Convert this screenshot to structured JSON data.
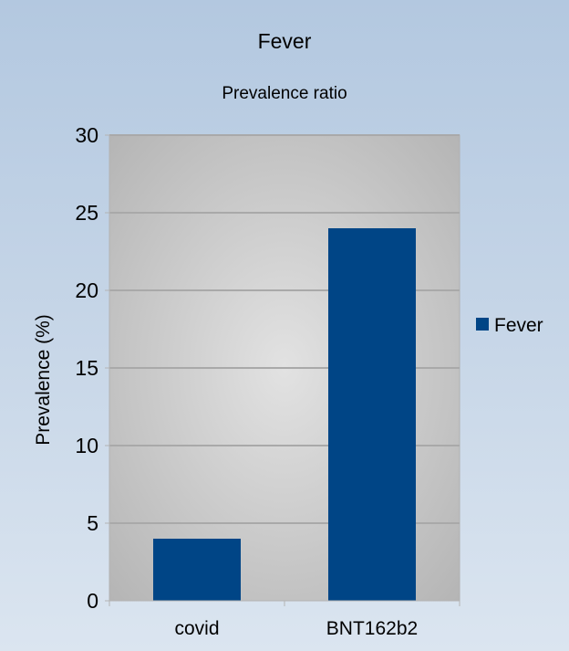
{
  "chart_data": {
    "type": "bar",
    "title": "Fever",
    "subtitle": "Prevalence ratio",
    "xlabel": "",
    "ylabel": "Prevalence (%)",
    "categories": [
      "covid",
      "BNT162b2"
    ],
    "series": [
      {
        "name": "Fever",
        "values": [
          4,
          24
        ],
        "color": "#004586"
      }
    ],
    "ylim": [
      0,
      30
    ],
    "yticks": [
      0,
      5,
      10,
      15,
      20,
      25,
      30
    ],
    "grid": true,
    "legend": "right"
  }
}
